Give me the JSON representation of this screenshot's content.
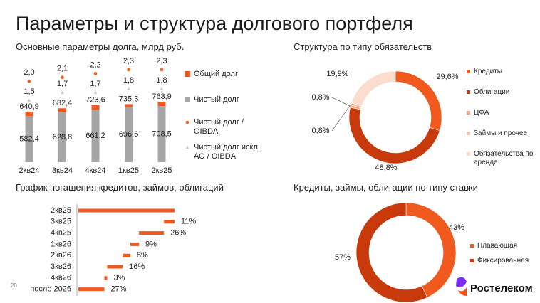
{
  "title": "Параметры и структура долгового портфеля",
  "page_number": "20",
  "logo": "Ростелеком",
  "chart_data": [
    {
      "type": "bar_dot",
      "title": "Основные параметры долга, млрд руб.",
      "categories": [
        "2кв24",
        "3кв24",
        "4кв24",
        "1кв25",
        "2кв25"
      ],
      "series": [
        {
          "name": "Общий долг",
          "color": "#f05a1e",
          "values": [
            640.9,
            682.4,
            723.6,
            735.3,
            763.9
          ],
          "value_labels": [
            "640,9",
            "682,4",
            "723,6",
            "735,3",
            "763,9"
          ]
        },
        {
          "name": "Чистый долг",
          "color": "#a6a6a6",
          "values": [
            582.4,
            628.8,
            661.2,
            696.6,
            708.5
          ],
          "value_labels": [
            "582,4",
            "628,8",
            "661,2",
            "696,6",
            "708,5"
          ]
        },
        {
          "name": "Чистый долг / OIBDA",
          "color": "#f05a1e",
          "marker": "circle",
          "axis": "y2",
          "values": [
            2.0,
            2.1,
            2.2,
            2.3,
            2.3
          ],
          "value_labels": [
            "2,0",
            "2,1",
            "2,2",
            "2,3",
            "2,3"
          ]
        },
        {
          "name": "Чистый долг искл. АО / OIBDA",
          "color": "#cfcfcf",
          "marker": "triangle",
          "axis": "y2",
          "values": [
            1.5,
            1.7,
            1.7,
            1.8,
            1.8
          ],
          "value_labels": [
            "1,5",
            "1,7",
            "1,7",
            "1,8",
            "1,8"
          ]
        }
      ]
    },
    {
      "type": "donut",
      "title": "Структура по типу обязательств",
      "categories": [
        "Кредиты",
        "Облигации",
        "ЦФА",
        "Займы и прочее",
        "Обязательства по аренде"
      ],
      "values": [
        29.6,
        48.8,
        0.8,
        0.8,
        19.9
      ],
      "value_labels": [
        "29,6%",
        "48,8%",
        "0,8%",
        "0,8%",
        "19,9%"
      ],
      "colors": [
        "#f05a1e",
        "#c8390c",
        "#f6a07c",
        "#f8b9a2",
        "#fcdccd"
      ]
    },
    {
      "type": "waterfall",
      "title": "График погашения кредитов, займов, облигаций",
      "categories": [
        "2кв25",
        "3кв25",
        "4кв25",
        "1кв26",
        "2кв26",
        "3кв26",
        "4кв26",
        "после 2026"
      ],
      "values": [
        100,
        11,
        26,
        9,
        8,
        16,
        3,
        27
      ],
      "value_labels": [
        null,
        "11%",
        "26%",
        "9%",
        "8%",
        "16%",
        "3%",
        "27%"
      ],
      "color": "#f05a1e"
    },
    {
      "type": "donut",
      "title": "Кредиты, займы, облигации по типу ставки",
      "categories": [
        "Плавающая",
        "Фиксированная"
      ],
      "values": [
        43,
        57
      ],
      "value_labels": [
        "43%",
        "57%"
      ],
      "colors": [
        "#f05a1e",
        "#c8390c"
      ]
    }
  ]
}
